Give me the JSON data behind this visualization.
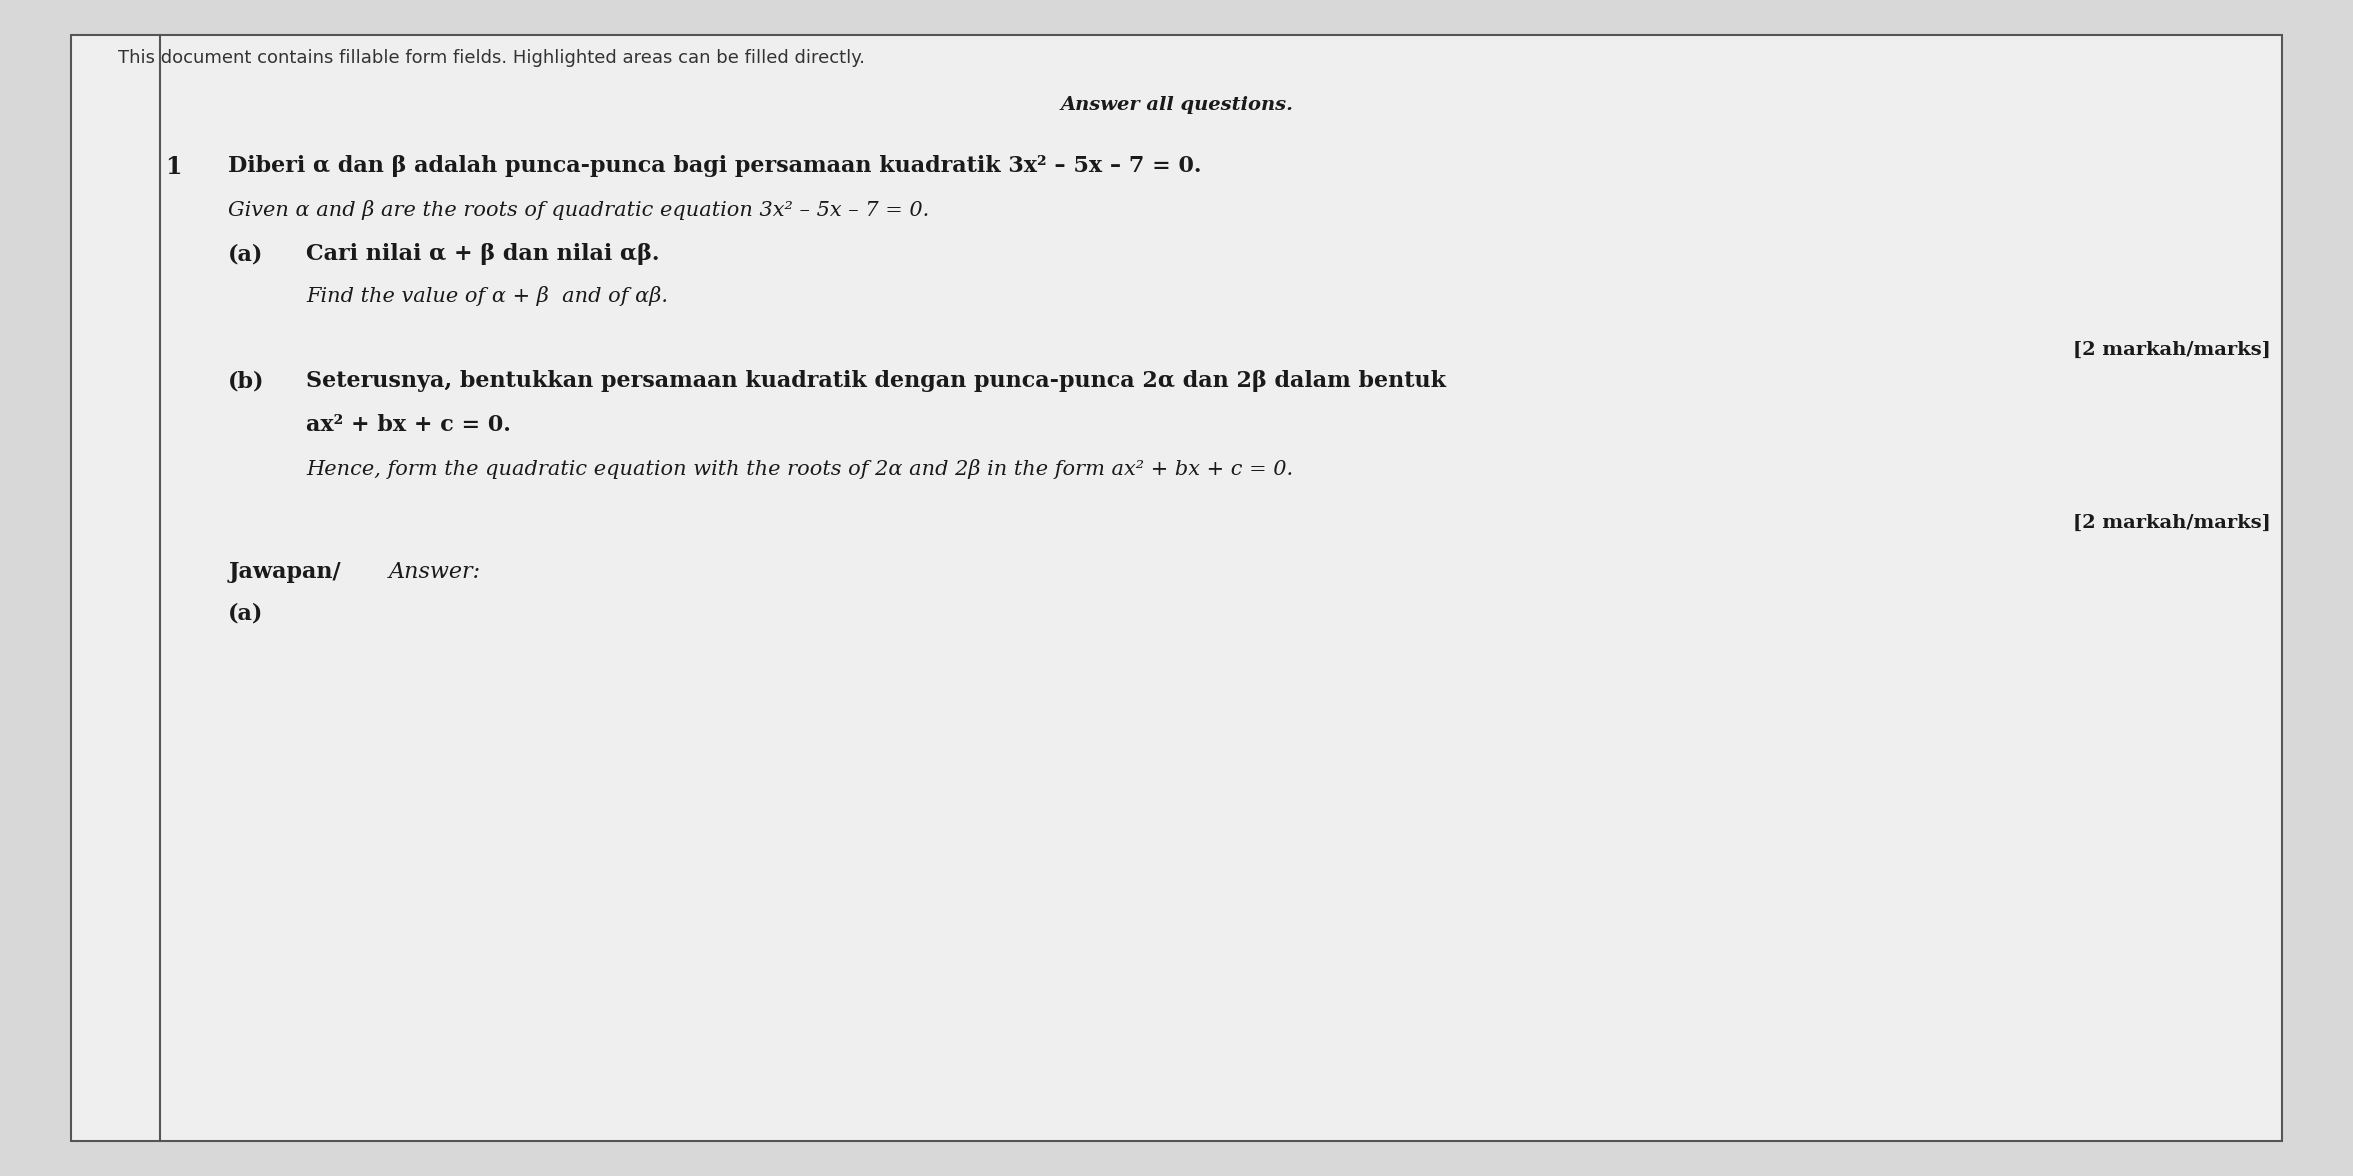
{
  "bg_color": "#d8d8d8",
  "page_bg": "#f0f0f0",
  "border_color": "#555555",
  "text_color": "#1a1a1a",
  "header_text": "This document contains fillable form fields. Highlighted areas can be filled directly.",
  "subtitle": "Answer all questions.",
  "q_number": "1",
  "line1_bold": "Diberi α dan β adalah punca-punca bagi persamaan kuadratik 3x² – 5x – 7 = 0.",
  "line2_italic": "Given α and β are the roots of quadratic equation 3x² – 5x – 7 = 0.",
  "part_a_label": "(a)",
  "part_a_bold": "Cari nilai α + β dan nilai αβ.",
  "part_a_italic": "Find the value of α + β  and of αβ.",
  "marks_a": "[2 markah/marks]",
  "part_b_label": "(b)",
  "part_b_bold1": "Seterusnya, bentukkan persamaan kuadratik dengan punca-punca 2α dan 2β dalam bentuk",
  "part_b_bold2": "ax² + bx + c = 0.",
  "part_b_italic1": "Hence, form the quadratic equation with the roots of 2α and 2β in the form ax² + bx + c = 0.",
  "marks_b": "[2 markah/marks]",
  "answer_label_bold": "Jawapan/",
  "answer_label_italic": "Answer:",
  "answer_a": "(a)",
  "font_size_header": 13,
  "font_size_subtitle": 14,
  "font_size_body": 16,
  "font_size_marks": 14
}
